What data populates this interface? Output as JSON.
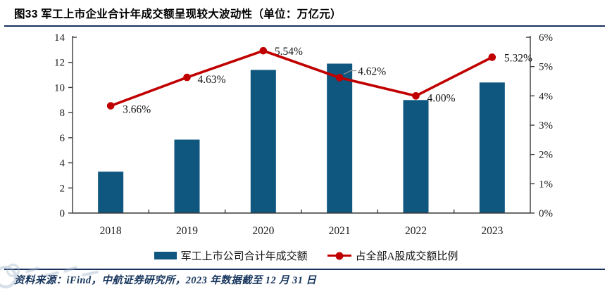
{
  "figure": {
    "title": "图33 军工上市企业合计年成交额呈现较大波动性（单位：万亿元）",
    "source_note": "资料来源：iFind，中航证券研究所，2023 年数据截至 12 月 31 日"
  },
  "chart_data": {
    "type": "bar",
    "subtype": "bar-line-combo",
    "title": "图33 军工上市企业合计年成交额呈现较大波动性（单位：万亿元）",
    "categories": [
      "2018",
      "2019",
      "2020",
      "2021",
      "2022",
      "2023"
    ],
    "series": [
      {
        "name": "军工上市公司合计年成交额",
        "type": "bar",
        "axis": "left",
        "color": "#105780",
        "values": [
          3.3,
          5.85,
          11.4,
          11.9,
          9.0,
          10.4
        ]
      },
      {
        "name": "占全部A股成交额比例",
        "type": "line",
        "axis": "right",
        "color": "#C00000",
        "values": [
          3.66,
          4.63,
          5.54,
          4.62,
          4.0,
          5.32
        ],
        "point_labels": [
          "3.66%",
          "4.63%",
          "5.54%",
          "4.62%",
          "4.00%",
          "5.32%"
        ]
      }
    ],
    "left_axis": {
      "min": 0,
      "max": 14,
      "step": 2,
      "tick_labels": [
        "0",
        "2",
        "4",
        "6",
        "8",
        "10",
        "12",
        "14"
      ]
    },
    "right_axis": {
      "min": 0,
      "max": 6,
      "step": 1,
      "tick_labels": [
        "0%",
        "1%",
        "2%",
        "3%",
        "4%",
        "5%",
        "6%"
      ]
    },
    "legend_position": "bottom",
    "grid": false
  }
}
